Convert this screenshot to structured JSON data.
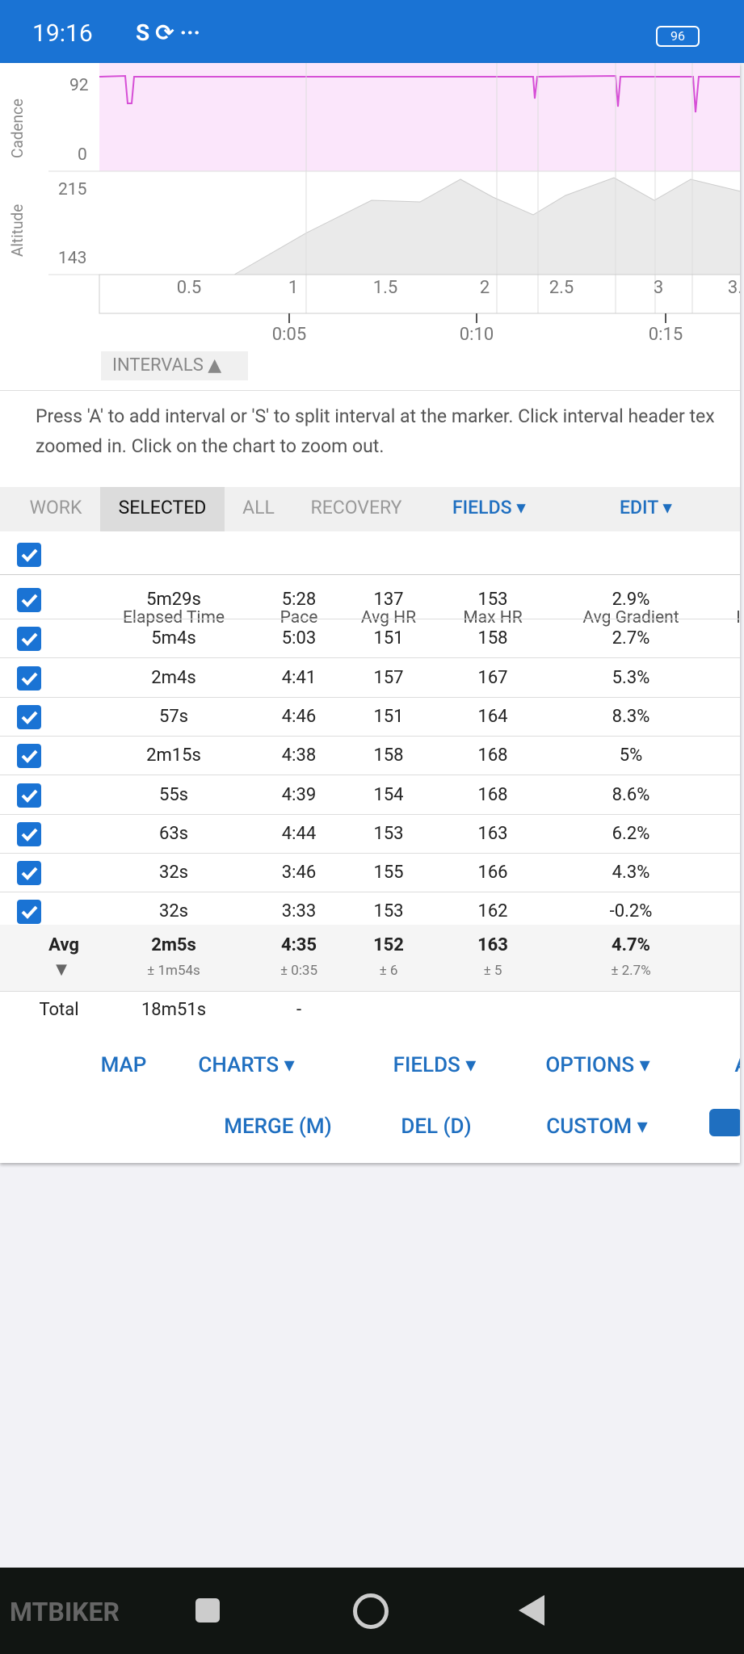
{
  "status_bar": {
    "time": "19:16",
    "battery": "96"
  },
  "charts": {
    "cadence": {
      "label": "Cadence",
      "ticks": [
        "92",
        "0"
      ]
    },
    "altitude": {
      "label": "Altitude",
      "ticks": [
        "215",
        "143"
      ]
    },
    "distance_ticks": [
      "0.5",
      "1",
      "1.5",
      "2",
      "2.5",
      "3",
      "3."
    ],
    "time_ticks": [
      "0:05",
      "0:10",
      "0:15"
    ]
  },
  "intervals_button": "INTERVALS",
  "help_text": [
    "Press 'A' to add interval or 'S' to split interval at the marker. Click interval header tex",
    "zoomed in. Click on the chart to zoom out."
  ],
  "tabs": [
    "WORK",
    "SELECTED",
    "ALL",
    "RECOVERY"
  ],
  "fields_menu": "FIELDS",
  "edit_menu": "EDIT",
  "table": {
    "headers": [
      "Elapsed Time",
      "Pace",
      "Avg HR",
      "Max HR",
      "Avg Gradient",
      "I"
    ],
    "rows": [
      [
        "5m29s",
        "5:28",
        "137",
        "153",
        "2.9%"
      ],
      [
        "5m4s",
        "5:03",
        "151",
        "158",
        "2.7%"
      ],
      [
        "2m4s",
        "4:41",
        "157",
        "167",
        "5.3%"
      ],
      [
        "57s",
        "4:46",
        "151",
        "164",
        "8.3%"
      ],
      [
        "2m15s",
        "4:38",
        "158",
        "168",
        "5%"
      ],
      [
        "55s",
        "4:39",
        "154",
        "168",
        "8.6%"
      ],
      [
        "63s",
        "4:44",
        "153",
        "163",
        "6.2%"
      ],
      [
        "32s",
        "3:46",
        "155",
        "166",
        "4.3%"
      ],
      [
        "32s",
        "3:33",
        "153",
        "162",
        "-0.2%"
      ]
    ],
    "avg": {
      "label": "Avg",
      "values": [
        "2m5s",
        "4:35",
        "152",
        "163",
        "4.7%"
      ],
      "deviations": [
        "± 1m54s",
        "± 0:35",
        "± 6",
        "± 5",
        "± 2.7%"
      ]
    },
    "total": {
      "label": "Total",
      "values": [
        "18m51s",
        "-"
      ]
    }
  },
  "actions": {
    "row1": [
      "MAP",
      "CHARTS",
      "FIELDS",
      "OPTIONS",
      "A"
    ],
    "row2": [
      "MERGE (M)",
      "DEL (D)",
      "CUSTOM"
    ]
  },
  "watermark": "MTBIKER"
}
